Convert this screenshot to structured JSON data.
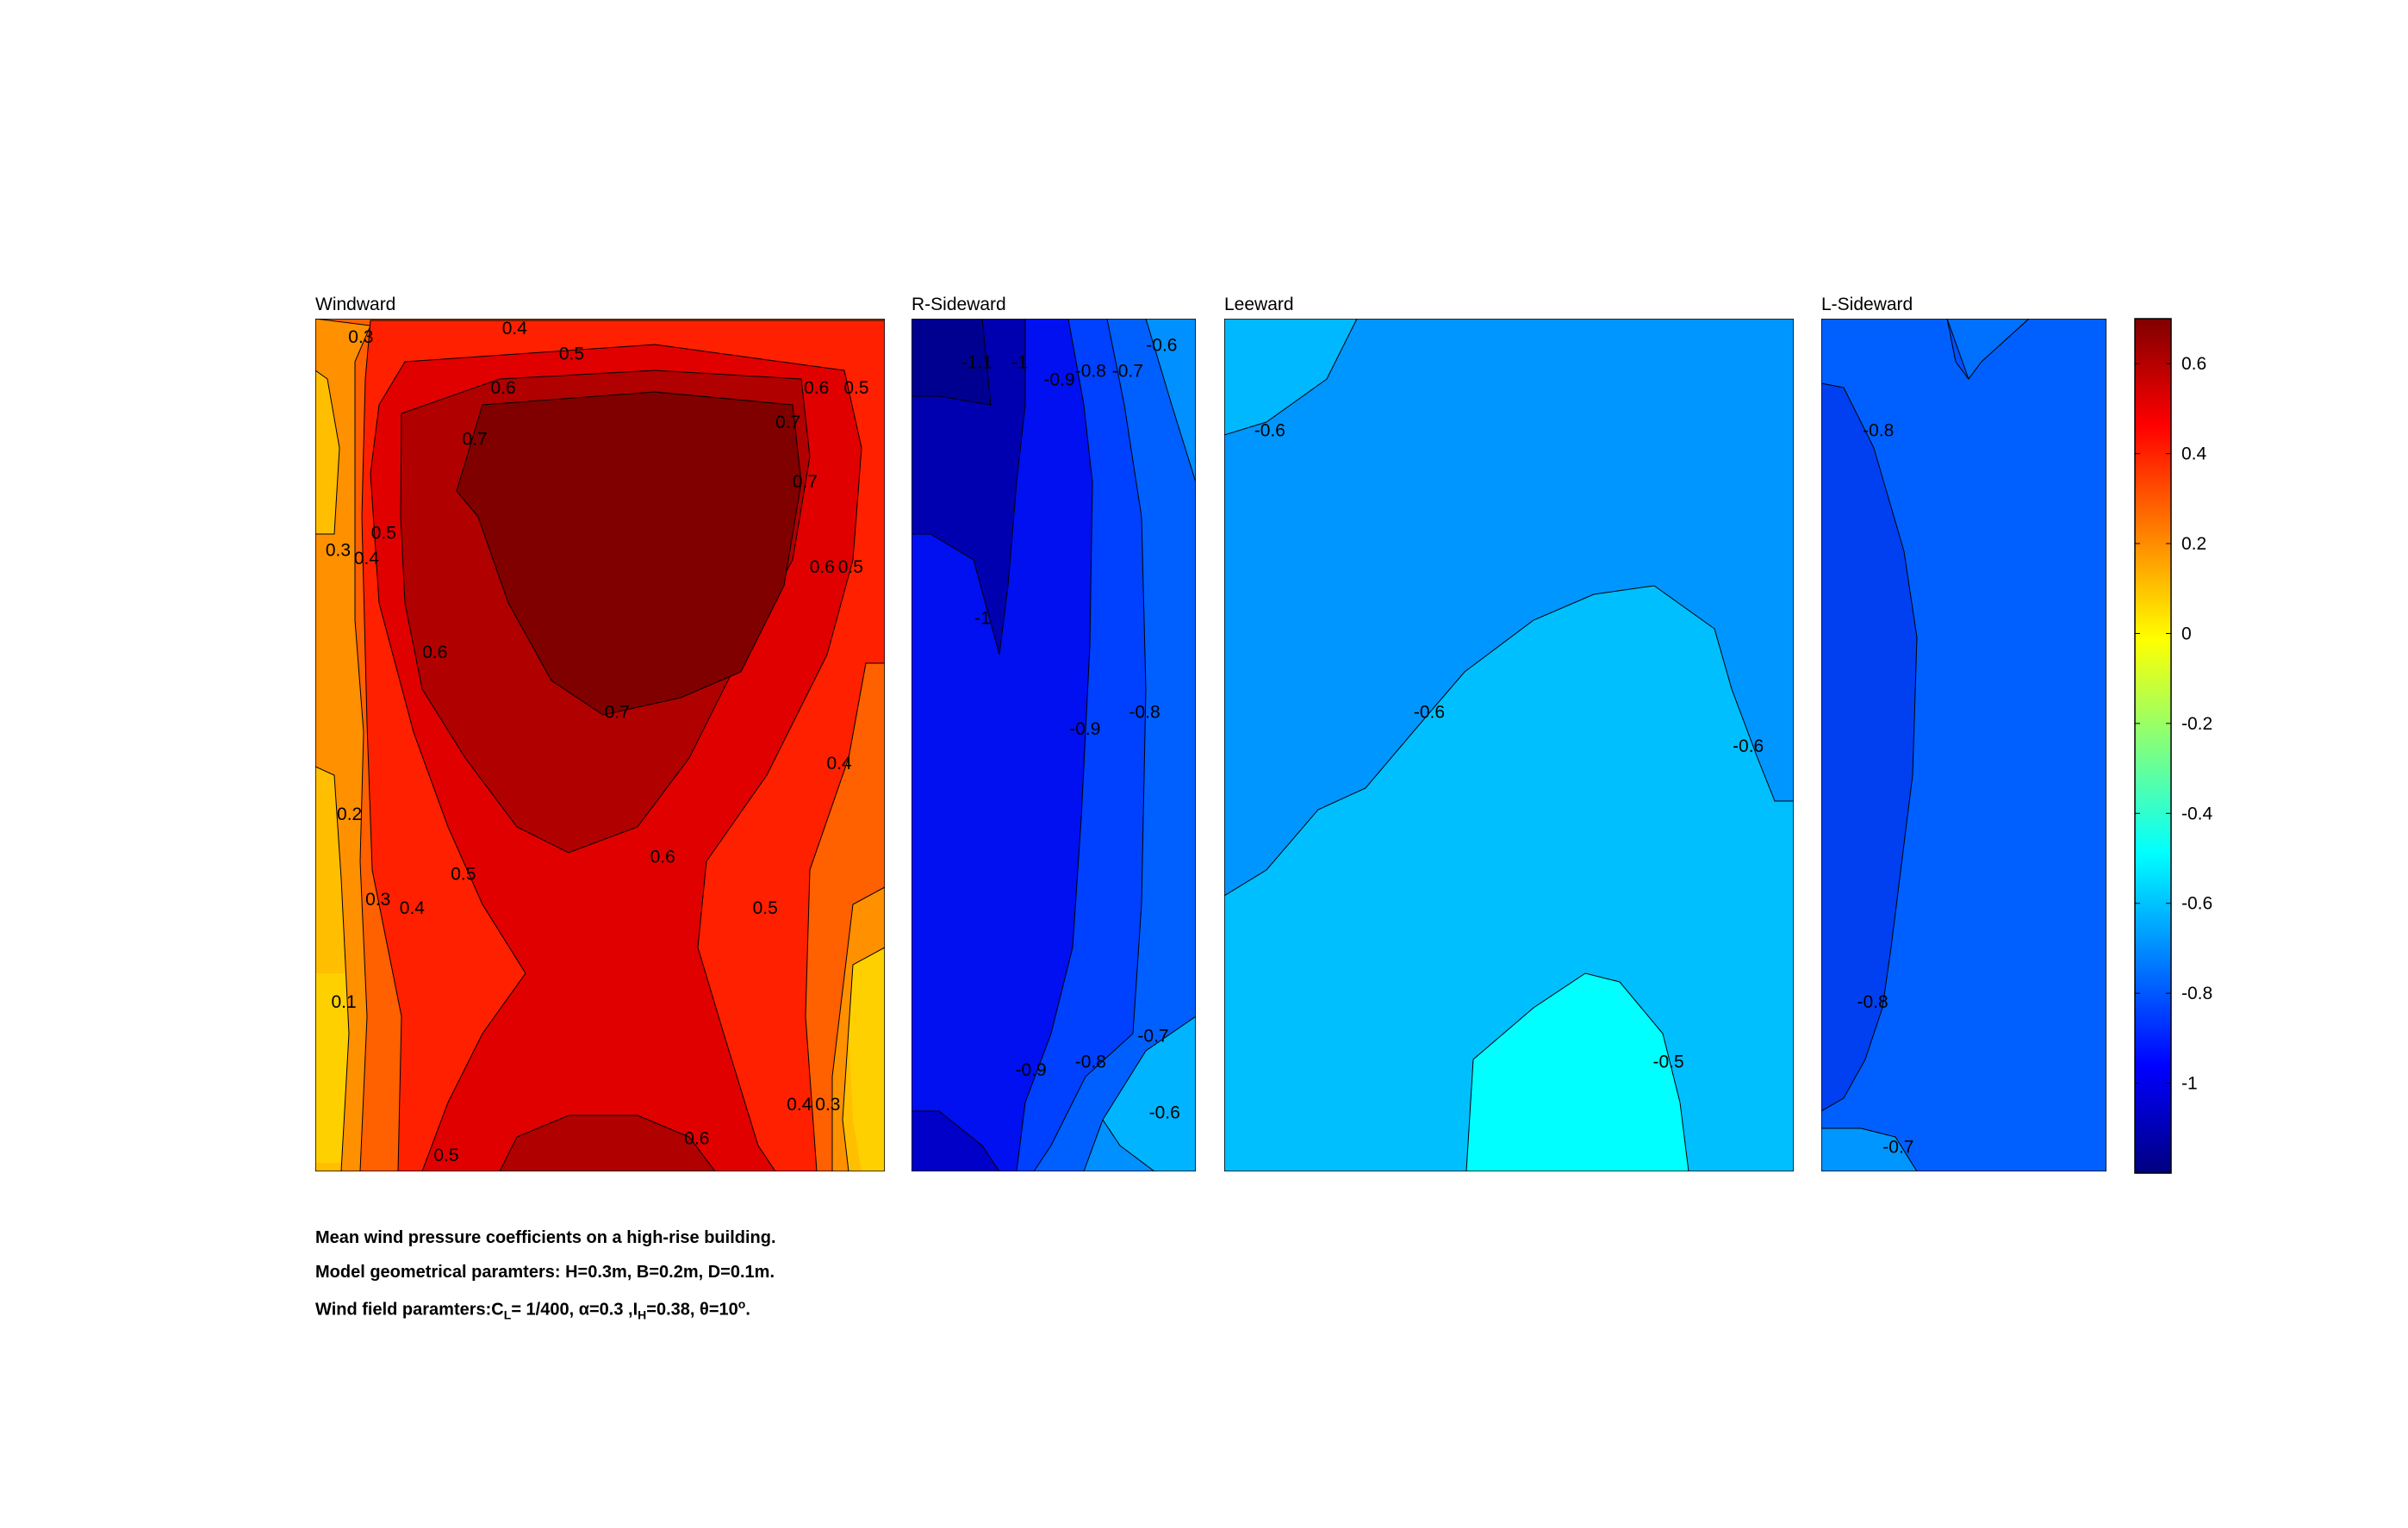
{
  "chart_data": {
    "type": "heatmap",
    "panels": [
      {
        "title": "Windward",
        "contour_labels": [
          {
            "text": "0.3",
            "u": 0.08,
            "v": 0.02
          },
          {
            "text": "0.4",
            "u": 0.35,
            "v": 0.01
          },
          {
            "text": "0.5",
            "u": 0.45,
            "v": 0.04
          },
          {
            "text": "0.6",
            "u": 0.33,
            "v": 0.08
          },
          {
            "text": "0.6",
            "u": 0.88,
            "v": 0.08
          },
          {
            "text": "0.5",
            "u": 0.95,
            "v": 0.08
          },
          {
            "text": "0.7",
            "u": 0.28,
            "v": 0.14
          },
          {
            "text": "0.7",
            "u": 0.83,
            "v": 0.12
          },
          {
            "text": "0.7",
            "u": 0.86,
            "v": 0.19
          },
          {
            "text": "0.5",
            "u": 0.12,
            "v": 0.25
          },
          {
            "text": "0.3",
            "u": 0.04,
            "v": 0.27
          },
          {
            "text": "0.4",
            "u": 0.09,
            "v": 0.28
          },
          {
            "text": "0.6",
            "u": 0.89,
            "v": 0.29
          },
          {
            "text": "0.5",
            "u": 0.94,
            "v": 0.29
          },
          {
            "text": "0.6",
            "u": 0.21,
            "v": 0.39
          },
          {
            "text": "0.7",
            "u": 0.53,
            "v": 0.46
          },
          {
            "text": "0.4",
            "u": 0.92,
            "v": 0.52
          },
          {
            "text": "0.2",
            "u": 0.06,
            "v": 0.58
          },
          {
            "text": "0.6",
            "u": 0.61,
            "v": 0.63
          },
          {
            "text": "0.5",
            "u": 0.26,
            "v": 0.65
          },
          {
            "text": "0.3",
            "u": 0.11,
            "v": 0.68
          },
          {
            "text": "0.4",
            "u": 0.17,
            "v": 0.69
          },
          {
            "text": "0.5",
            "u": 0.79,
            "v": 0.69
          },
          {
            "text": "0.1",
            "u": 0.05,
            "v": 0.8
          },
          {
            "text": "0.4",
            "u": 0.85,
            "v": 0.92
          },
          {
            "text": "0.3",
            "u": 0.9,
            "v": 0.92
          },
          {
            "text": "0.6",
            "u": 0.67,
            "v": 0.96
          },
          {
            "text": "0.5",
            "u": 0.23,
            "v": 0.98
          }
        ]
      },
      {
        "title": "R-Sideward",
        "contour_labels": [
          {
            "text": "-1.1",
            "u": 0.23,
            "v": 0.05
          },
          {
            "text": "-1",
            "u": 0.38,
            "v": 0.05
          },
          {
            "text": "-0.9",
            "u": 0.52,
            "v": 0.07
          },
          {
            "text": "-0.8",
            "u": 0.63,
            "v": 0.06
          },
          {
            "text": "-0.7",
            "u": 0.76,
            "v": 0.06
          },
          {
            "text": "-0.6",
            "u": 0.88,
            "v": 0.03
          },
          {
            "text": "-1",
            "u": 0.25,
            "v": 0.35
          },
          {
            "text": "-0.9",
            "u": 0.61,
            "v": 0.48
          },
          {
            "text": "-0.8",
            "u": 0.82,
            "v": 0.46
          },
          {
            "text": "-0.7",
            "u": 0.85,
            "v": 0.84
          },
          {
            "text": "-0.9",
            "u": 0.42,
            "v": 0.88
          },
          {
            "text": "-0.8",
            "u": 0.63,
            "v": 0.87
          },
          {
            "text": "-0.6",
            "u": 0.89,
            "v": 0.93
          }
        ]
      },
      {
        "title": "Leeward",
        "contour_labels": [
          {
            "text": "-0.6",
            "u": 0.08,
            "v": 0.13
          },
          {
            "text": "-0.6",
            "u": 0.36,
            "v": 0.46
          },
          {
            "text": "-0.6",
            "u": 0.92,
            "v": 0.5
          },
          {
            "text": "-0.5",
            "u": 0.78,
            "v": 0.87
          }
        ]
      },
      {
        "title": "L-Sideward",
        "contour_labels": [
          {
            "text": "-0.8",
            "u": 0.2,
            "v": 0.13
          },
          {
            "text": "-0.8",
            "u": 0.18,
            "v": 0.8
          },
          {
            "text": "-0.7",
            "u": 0.27,
            "v": 0.97
          }
        ]
      }
    ],
    "colorbar": {
      "colormap": "jet",
      "range": [
        -1.2,
        0.7
      ],
      "ticks": [
        0.6,
        0.4,
        0.2,
        0,
        -0.2,
        -0.4,
        -0.6,
        -0.8,
        -1
      ],
      "tick_labels": [
        "0.6",
        "0.4",
        "0.2",
        "0",
        "-0.2",
        "-0.4",
        "-0.6",
        "-0.8",
        "-1"
      ]
    },
    "caption": {
      "line1": "Mean wind pressure coefficients on a high-rise building.",
      "line2": "Model geometrical paramters: H=0.3m, B=0.2m, D=0.1m.",
      "line3_a": "Wind field paramters:C",
      "line3_sub1": "L",
      "line3_b": "= 1/400, α=0.3 ,I",
      "line3_sub2": "H",
      "line3_c": "=0.38, θ=10",
      "line3_sup": "o",
      "line3_d": "."
    }
  }
}
